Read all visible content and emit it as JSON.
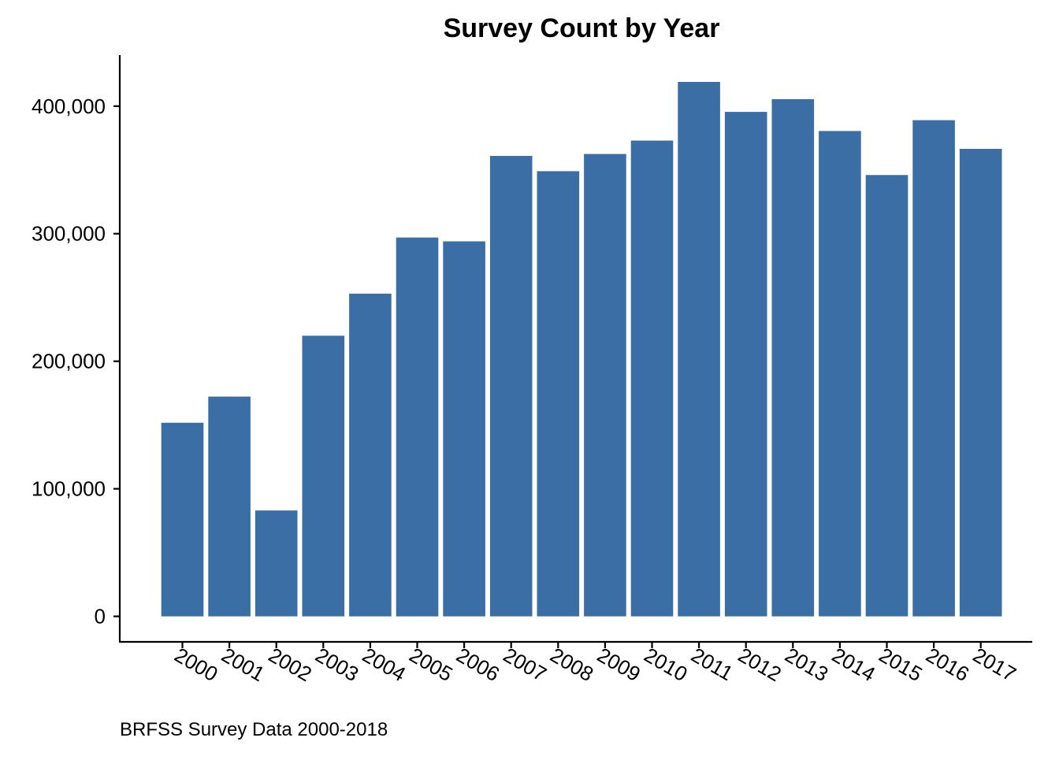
{
  "colors": {
    "bar": "#3a6ea5",
    "axis": "#000000",
    "background": "#ffffff"
  },
  "chart_data": {
    "type": "bar",
    "title": "Survey Count by Year",
    "caption": "BRFSS Survey Data 2000-2018",
    "xlabel": "",
    "ylabel": "",
    "categories": [
      "2000",
      "2001",
      "2002",
      "2003",
      "2004",
      "2005",
      "2006",
      "2007",
      "2008",
      "2009",
      "2010",
      "2011",
      "2012",
      "2013",
      "2014",
      "2015",
      "2016",
      "2017"
    ],
    "values": [
      151800,
      172300,
      83000,
      220000,
      253000,
      297000,
      294000,
      361000,
      349000,
      362500,
      373000,
      419000,
      395500,
      405500,
      380500,
      346000,
      389000,
      366500
    ],
    "yticks": [
      0,
      100000,
      200000,
      300000,
      400000
    ],
    "ytick_labels": [
      "0",
      "100,000",
      "200,000",
      "300,000",
      "400,000"
    ],
    "ylim": [
      -20000,
      440000
    ],
    "grid": false,
    "legend": "none"
  }
}
